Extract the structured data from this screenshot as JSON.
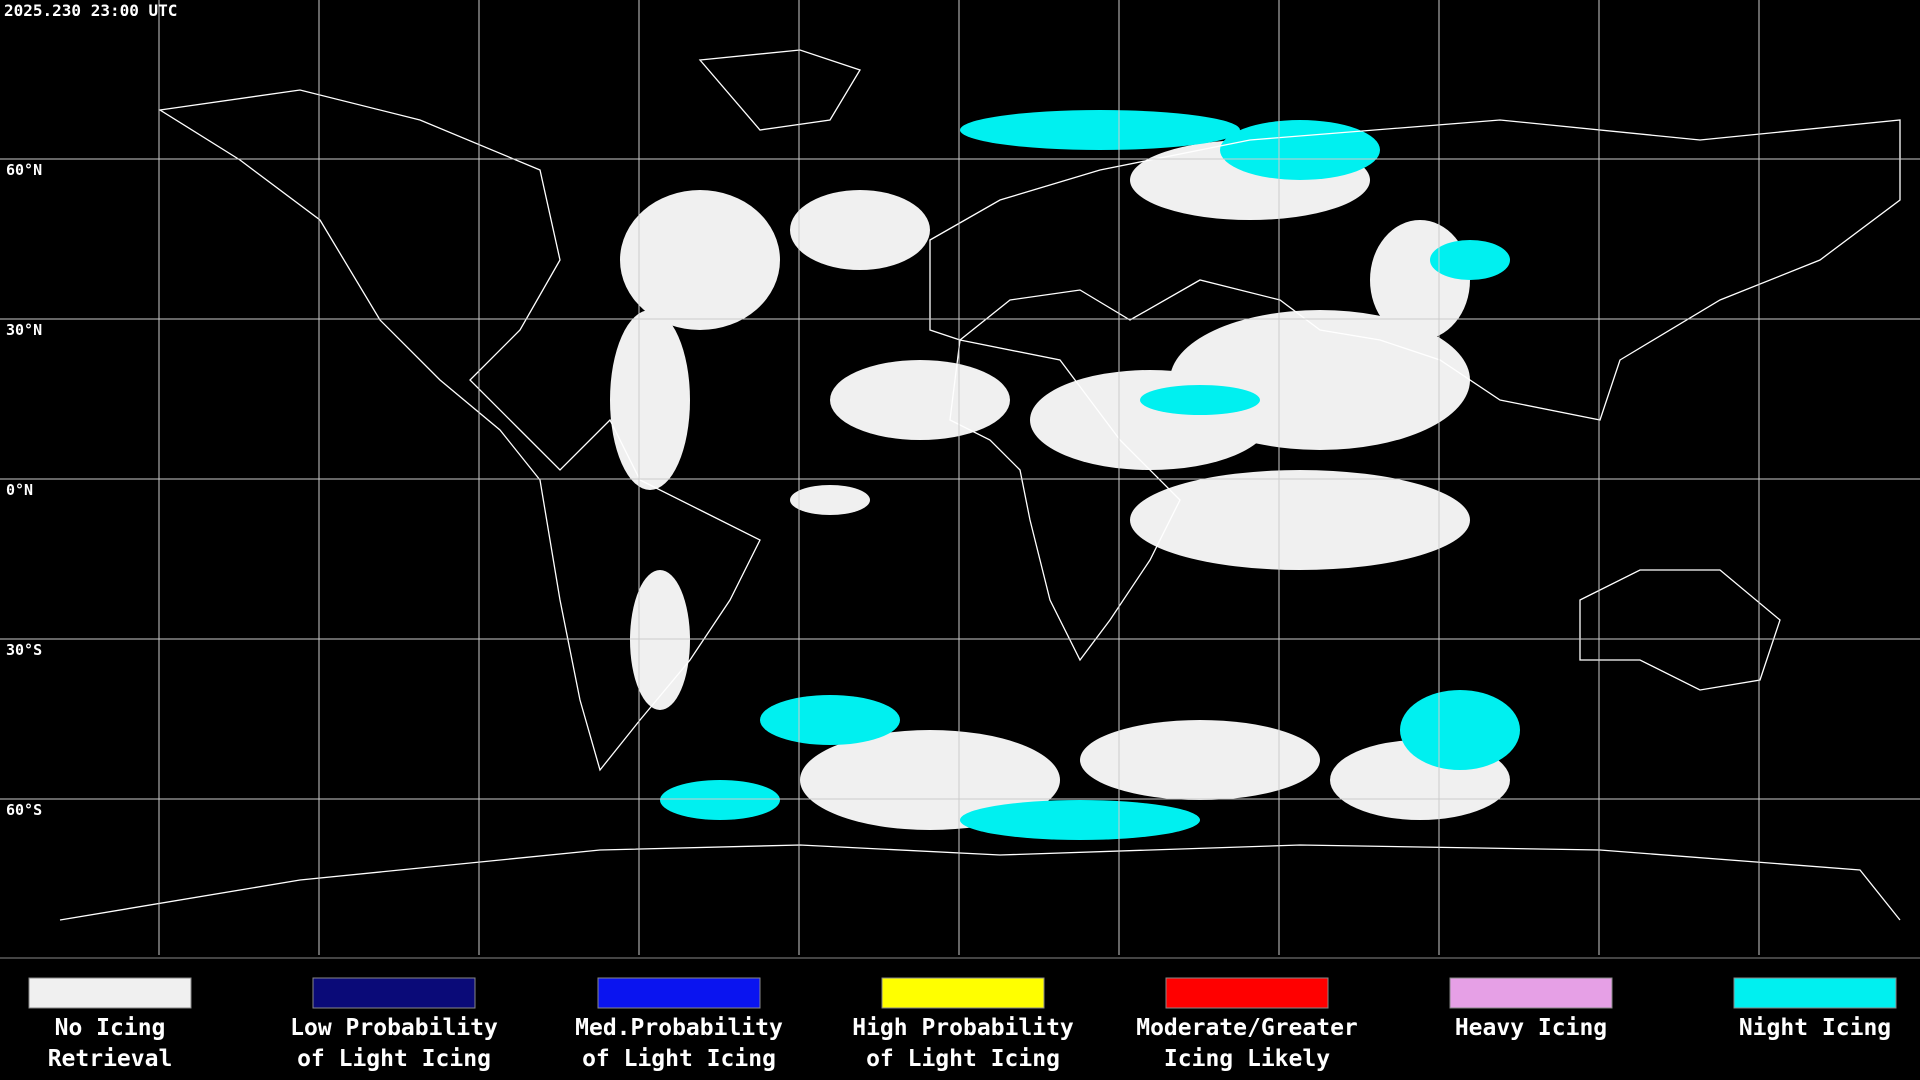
{
  "timestamp": "2025.230 23:00 UTC",
  "map": {
    "lat_labels": [
      "60°N",
      "30°N",
      "0°N",
      "30°S",
      "60°S"
    ]
  },
  "legend": [
    {
      "lines": [
        "No Icing",
        "Retrieval"
      ],
      "color": "#f0f0f0"
    },
    {
      "lines": [
        "Low Probability",
        "of Light Icing"
      ],
      "color": "#0a0a78"
    },
    {
      "lines": [
        "Med.Probability",
        "of Light Icing"
      ],
      "color": "#0a14f0"
    },
    {
      "lines": [
        "High Probability",
        "of Light Icing"
      ],
      "color": "#ffff00"
    },
    {
      "lines": [
        "Moderate/Greater",
        "Icing Likely"
      ],
      "color": "#ff0000"
    },
    {
      "lines": [
        "Heavy Icing"
      ],
      "color": "#e6a0e6"
    },
    {
      "lines": [
        "Night Icing"
      ],
      "color": "#00f0f0"
    }
  ]
}
